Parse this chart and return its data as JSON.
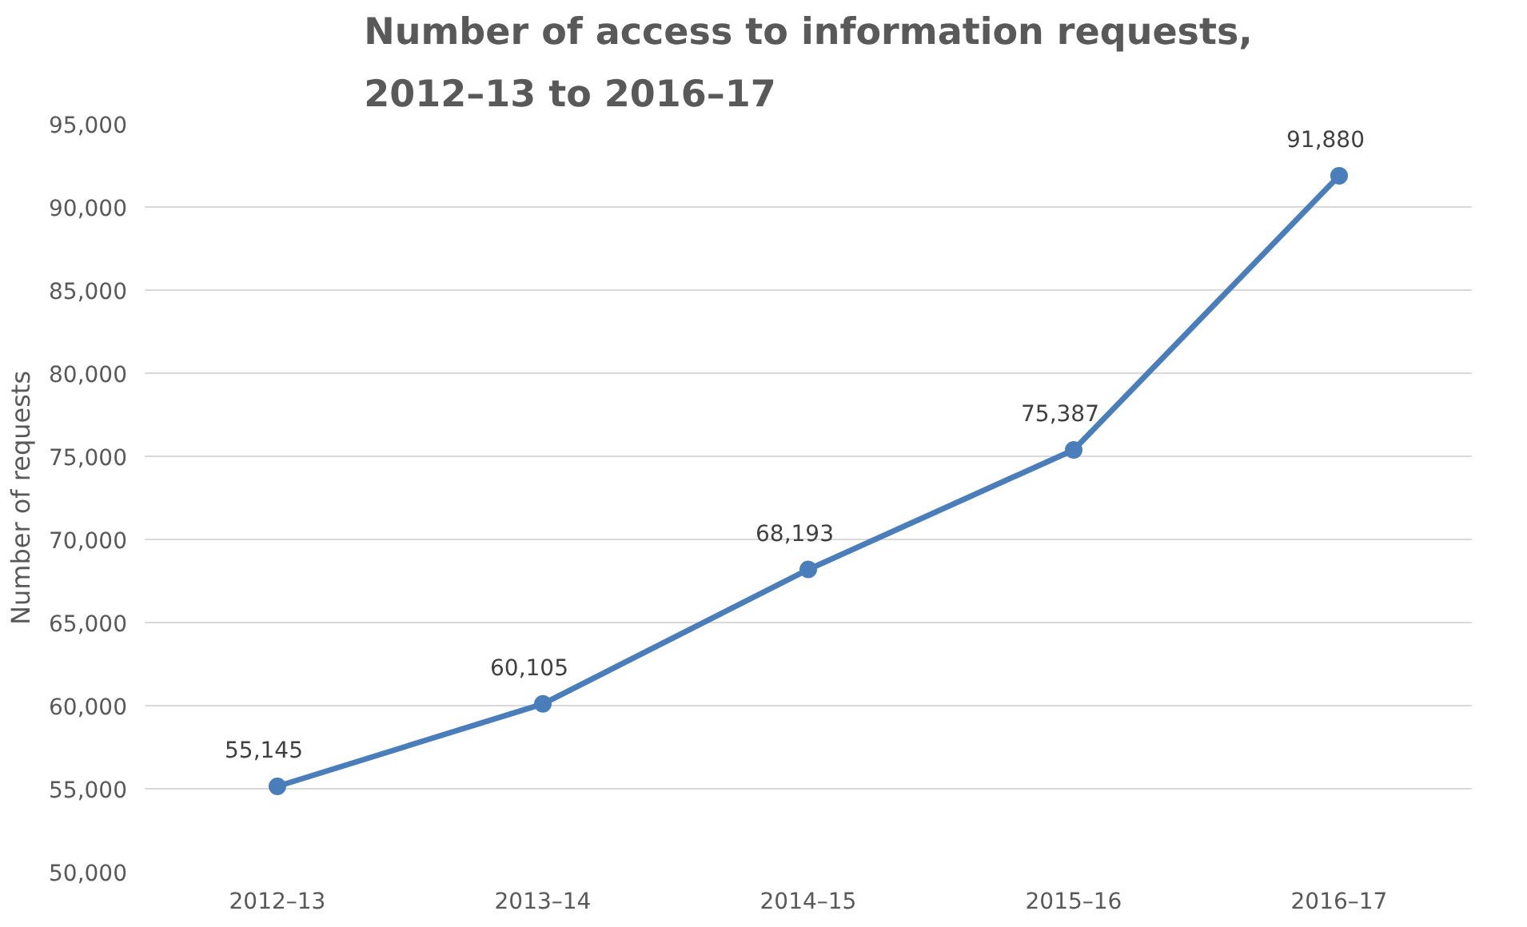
{
  "chart_data": {
    "type": "line",
    "title": "Number of access to information requests,\n2012–13 to 2016–17",
    "ylabel": "Number of requests",
    "categories": [
      "2012–13",
      "2013–14",
      "2014–15",
      "2015–16",
      "2016–17"
    ],
    "series": [
      {
        "color": "#4a7ebb",
        "values": [
          55145,
          60105,
          68193,
          75387,
          91880
        ],
        "value_labels": [
          "55,145",
          "60,105",
          "68,193",
          "75,387",
          "91,880"
        ]
      }
    ],
    "ylim": [
      50000,
      95000
    ],
    "yticks": [
      {
        "value": 50000,
        "label": "50,000"
      },
      {
        "value": 55000,
        "label": "55,000"
      },
      {
        "value": 60000,
        "label": "60,000"
      },
      {
        "value": 65000,
        "label": "65,000"
      },
      {
        "value": 70000,
        "label": "70,000"
      },
      {
        "value": 75000,
        "label": "75,000"
      },
      {
        "value": 80000,
        "label": "80,000"
      },
      {
        "value": 85000,
        "label": "85,000"
      },
      {
        "value": 90000,
        "label": "90,000"
      },
      {
        "value": 95000,
        "label": "95,000"
      }
    ],
    "grid": "y",
    "marker": "circle",
    "line_style": "solid"
  }
}
